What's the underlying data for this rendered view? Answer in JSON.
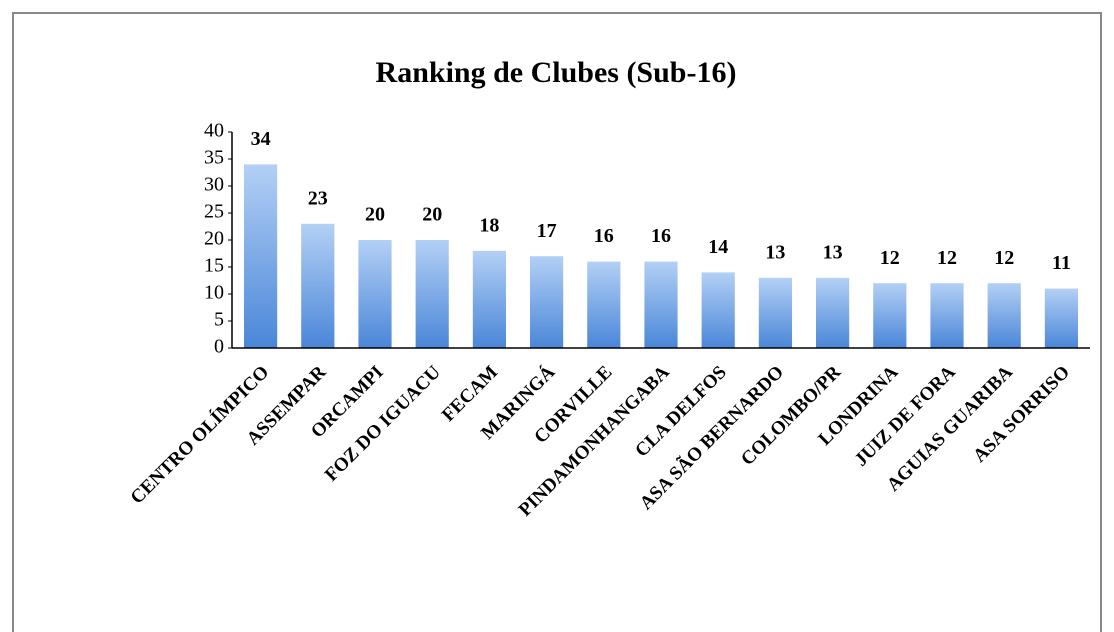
{
  "chart_data": {
    "type": "bar",
    "title": "Ranking de Clubes (Sub-16)",
    "categories": [
      "CENTRO OLÍMPICO",
      "ASSEMPAR",
      "ORCAMPI",
      "FOZ DO IGUACU",
      "FECAM",
      "MARINGÁ",
      "CORVILLE",
      "PINDAMONHANGABA",
      "CLA DELFOS",
      "ASA SÃO BERNARDO",
      "COLOMBO/PR",
      "LONDRINA",
      "JUIZ DE FORA",
      "AGUIAS GUARIBA",
      "ASA SORRISO"
    ],
    "values": [
      34,
      23,
      20,
      20,
      18,
      17,
      16,
      16,
      14,
      13,
      13,
      12,
      12,
      12,
      11
    ],
    "color": "#4a86d8",
    "ylim": [
      0,
      40
    ],
    "yticks": [
      0,
      5,
      10,
      15,
      20,
      25,
      30,
      35,
      40
    ],
    "grid": false
  }
}
